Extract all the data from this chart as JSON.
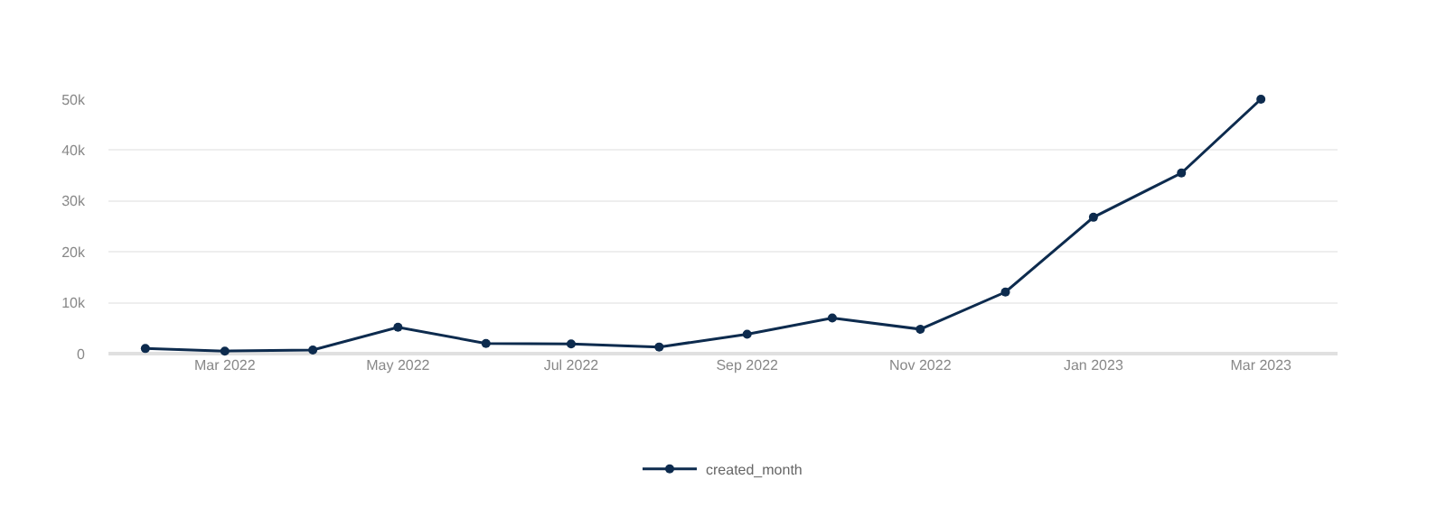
{
  "chart_data": {
    "type": "line",
    "x": [
      "2022-02",
      "2022-03",
      "2022-04",
      "2022-05",
      "2022-06",
      "2022-07",
      "2022-08",
      "2022-09",
      "2022-10",
      "2022-11",
      "2022-12",
      "2023-01",
      "2023-02",
      "2023-03"
    ],
    "series": [
      {
        "name": "created_month",
        "color": "#0d2b4e",
        "values": [
          1000,
          500,
          700,
          5200,
          2000,
          1900,
          1300,
          3800,
          7000,
          4800,
          12100,
          26800,
          35500,
          50000
        ]
      }
    ],
    "xlim": [
      "2022-01-19",
      "2023-03-28"
    ],
    "xticks": [
      {
        "value": "2022-03-01",
        "label": "Mar 2022"
      },
      {
        "value": "2022-05-01",
        "label": "May 2022"
      },
      {
        "value": "2022-07-01",
        "label": "Jul 2022"
      },
      {
        "value": "2022-09-01",
        "label": "Sep 2022"
      },
      {
        "value": "2022-11-01",
        "label": "Nov 2022"
      },
      {
        "value": "2023-01-01",
        "label": "Jan 2023"
      },
      {
        "value": "2023-03-01",
        "label": "Mar 2023"
      }
    ],
    "ylim": [
      0,
      50000
    ],
    "yticks": [
      {
        "value": 0,
        "label": "0"
      },
      {
        "value": 10000,
        "label": "10k"
      },
      {
        "value": 20000,
        "label": "20k"
      },
      {
        "value": 30000,
        "label": "30k"
      },
      {
        "value": 40000,
        "label": "40k"
      },
      {
        "value": 50000,
        "label": "50k"
      }
    ],
    "grid": "y",
    "legend": "bottom",
    "marker": "circle",
    "line_style": "solid"
  }
}
